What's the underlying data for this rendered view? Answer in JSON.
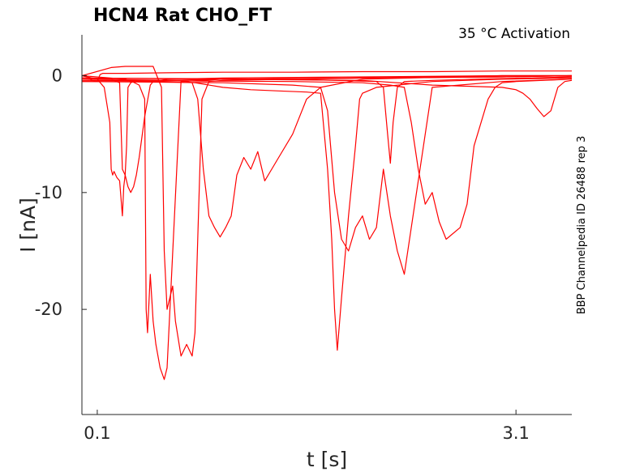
{
  "chart_data": {
    "type": "line",
    "title": "HCN4  Rat  CHO_FT",
    "annotation": "35 °C  Activation",
    "side_label": "BBP Channelpedia ID 26488 rep 3",
    "xlabel": "t [s]",
    "ylabel": "I [nA]",
    "x_ticks": [
      0.1,
      3.1
    ],
    "x_tick_labels": [
      "0.1",
      "3.1"
    ],
    "y_ticks": [
      0,
      -10,
      -20
    ],
    "y_tick_labels": [
      "0",
      "-10",
      "-20"
    ],
    "xlim": [
      -0.01,
      3.5
    ],
    "ylim": [
      -29,
      3.5
    ],
    "color": "#ff0000",
    "series": [
      {
        "x": [
          -0.01,
          0.03,
          0.06,
          0.1,
          0.12,
          0.14,
          0.16,
          0.2,
          0.3,
          0.6,
          1.0,
          1.5,
          2.0,
          2.5,
          3.0,
          3.5
        ],
        "y": [
          0,
          -0.1,
          -0.4,
          -0.5,
          0.1,
          0.2,
          0.2,
          0.2,
          0.2,
          0.25,
          0.3,
          0.3,
          0.35,
          0.35,
          0.4,
          0.4
        ]
      },
      {
        "x": [
          -0.01,
          0.1,
          0.15,
          0.19,
          0.2,
          0.21,
          0.22,
          0.24,
          0.26,
          0.28,
          0.29,
          0.3,
          0.31,
          0.32,
          0.34,
          0.36,
          0.4,
          0.6,
          1.0,
          2.0,
          3.0,
          3.5
        ],
        "y": [
          0,
          -0.3,
          -1,
          -4,
          -8,
          -8.5,
          -8.2,
          -8.7,
          -9,
          -12,
          -9.5,
          -8.5,
          -6,
          -1,
          -0.6,
          -0.5,
          -0.5,
          -0.4,
          -0.3,
          -0.2,
          -0.1,
          0
        ]
      },
      {
        "x": [
          -0.01,
          0.2,
          0.26,
          0.28,
          0.3,
          0.32,
          0.34,
          0.36,
          0.38,
          0.4,
          0.44,
          0.48,
          0.5,
          0.6,
          1.0,
          2.0,
          3.0,
          3.5
        ],
        "y": [
          -0.2,
          -0.3,
          -0.6,
          -8,
          -8.5,
          -9.5,
          -10,
          -9.5,
          -8.5,
          -7,
          -3.5,
          -0.8,
          -0.5,
          -0.3,
          -0.2,
          -0.1,
          0,
          0
        ]
      },
      {
        "x": [
          -0.01,
          0.3,
          0.35,
          0.4,
          0.44,
          0.45,
          0.46,
          0.48,
          0.5,
          0.52,
          0.55,
          0.58,
          0.6,
          0.7,
          1.0,
          2.0,
          3.0,
          3.5
        ],
        "y": [
          0,
          -0.3,
          -0.5,
          -0.8,
          -2,
          -20,
          -22,
          -17,
          -21,
          -23,
          -25,
          -26,
          -25,
          -0.5,
          -0.3,
          -0.2,
          -0.1,
          0
        ]
      },
      {
        "x": [
          -0.01,
          0.2,
          0.3,
          0.5,
          0.56,
          0.58,
          0.6,
          0.64,
          0.66,
          0.7,
          0.74,
          0.78,
          0.8,
          0.82,
          0.85,
          0.9,
          1.0,
          2.0,
          3.0,
          3.5
        ],
        "y": [
          0,
          0.7,
          0.8,
          0.8,
          -1,
          -15,
          -20,
          -18,
          -21,
          -24,
          -23,
          -24,
          -22,
          -14,
          -2,
          -0.5,
          -0.4,
          -0.2,
          0,
          0
        ]
      },
      {
        "x": [
          -0.01,
          0.7,
          0.78,
          0.82,
          0.86,
          0.9,
          0.94,
          0.98,
          1.02,
          1.06,
          1.1,
          1.15,
          1.2,
          1.25,
          1.3,
          1.35,
          1.4,
          1.5,
          1.6,
          1.7,
          2.0,
          3.0,
          3.5
        ],
        "y": [
          -0.3,
          -0.4,
          -0.6,
          -2,
          -8,
          -12,
          -13,
          -13.8,
          -13,
          -12,
          -8.5,
          -7,
          -8,
          -6.5,
          -9,
          -8,
          -7,
          -5,
          -2,
          -1,
          -0.3,
          0,
          0
        ]
      },
      {
        "x": [
          -0.01,
          0.5,
          0.8,
          1.0,
          1.2,
          1.4,
          1.6,
          1.7,
          1.75,
          1.78,
          1.8,
          1.82,
          1.85,
          1.9,
          1.95,
          1.98,
          2.0,
          2.1,
          2.5,
          3.0,
          3.5
        ],
        "y": [
          -0.5,
          -0.5,
          -0.6,
          -1,
          -1.2,
          -1.3,
          -1.4,
          -1.5,
          -8,
          -14,
          -20,
          -23.5,
          -19,
          -12,
          -6,
          -2,
          -1.5,
          -1,
          -0.5,
          -0.3,
          -0.2
        ]
      },
      {
        "x": [
          -0.01,
          1.0,
          1.5,
          1.7,
          1.75,
          1.8,
          1.85,
          1.9,
          1.95,
          2.0,
          2.05,
          2.1,
          2.15,
          2.2,
          2.25,
          2.3,
          2.5,
          3.0,
          3.5
        ],
        "y": [
          -0.5,
          -0.6,
          -0.8,
          -1,
          -3,
          -10,
          -14,
          -15,
          -13,
          -12,
          -14,
          -13,
          -8,
          -12,
          -15,
          -17,
          -1,
          -0.5,
          -0.3
        ]
      },
      {
        "x": [
          -0.01,
          1.5,
          2.0,
          2.2,
          2.3,
          2.35,
          2.4,
          2.45,
          2.5,
          2.55,
          2.6,
          2.7,
          2.75,
          2.8,
          2.9,
          2.95,
          3.0,
          3.1,
          3.5
        ],
        "y": [
          -0.4,
          -0.5,
          -0.6,
          -0.8,
          -1,
          -4,
          -8,
          -11,
          -10,
          -12.5,
          -14,
          -13,
          -11,
          -6,
          -2,
          -1,
          -0.6,
          -0.5,
          -0.3
        ]
      },
      {
        "x": [
          -0.01,
          1.5,
          2.1,
          2.15,
          2.18,
          2.2,
          2.22,
          2.25,
          2.3,
          2.5,
          2.8,
          3.2,
          3.5
        ],
        "y": [
          -0.2,
          -0.3,
          -0.5,
          -1,
          -5,
          -7.5,
          -4,
          -1,
          -0.5,
          -0.4,
          -0.3,
          -0.2,
          -0.1
        ]
      },
      {
        "x": [
          -0.01,
          2.0,
          2.5,
          3.0,
          3.1,
          3.15,
          3.2,
          3.25,
          3.3,
          3.35,
          3.4,
          3.45,
          3.5
        ],
        "y": [
          -0.2,
          -0.4,
          -0.8,
          -1,
          -1.2,
          -1.5,
          -2,
          -2.8,
          -3.5,
          -3,
          -1,
          -0.5,
          -0.4
        ]
      }
    ]
  }
}
